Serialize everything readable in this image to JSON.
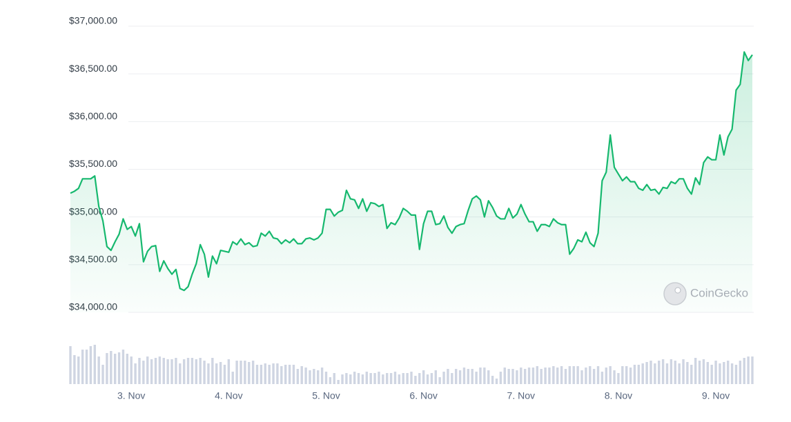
{
  "chart_data": {
    "type": "line",
    "watermark": "CoinGecko",
    "ylim": [
      34000,
      37000
    ],
    "yticks": [
      {
        "value": 34000,
        "label": "$34,000.00"
      },
      {
        "value": 34500,
        "label": "$34,500.00"
      },
      {
        "value": 35000,
        "label": "$35,000.00"
      },
      {
        "value": 35500,
        "label": "$35,500.00"
      },
      {
        "value": 36000,
        "label": "$36,000.00"
      },
      {
        "value": 36500,
        "label": "$36,500.00"
      },
      {
        "value": 37000,
        "label": "$37,000.00"
      }
    ],
    "y2lim": [
      0,
      60
    ],
    "grid": true,
    "categories": [
      null,
      null,
      null,
      null,
      null,
      null,
      null,
      null,
      null,
      null,
      null,
      null,
      null,
      null,
      null,
      "3. Nov",
      null,
      null,
      null,
      null,
      null,
      null,
      null,
      null,
      null,
      null,
      null,
      null,
      null,
      null,
      null,
      null,
      null,
      null,
      null,
      null,
      null,
      null,
      null,
      "4. Nov",
      null,
      null,
      null,
      null,
      null,
      null,
      null,
      null,
      null,
      null,
      null,
      null,
      null,
      null,
      null,
      null,
      null,
      null,
      null,
      null,
      null,
      null,
      null,
      "5. Nov",
      null,
      null,
      null,
      null,
      null,
      null,
      null,
      null,
      null,
      null,
      null,
      null,
      null,
      null,
      null,
      null,
      null,
      null,
      null,
      null,
      null,
      null,
      null,
      "6. Nov",
      null,
      null,
      null,
      null,
      null,
      null,
      null,
      null,
      null,
      null,
      null,
      null,
      null,
      null,
      null,
      null,
      null,
      null,
      null,
      null,
      null,
      null,
      null,
      "7. Nov",
      null,
      null,
      null,
      null,
      null,
      null,
      null,
      null,
      null,
      null,
      null,
      null,
      null,
      null,
      null,
      null,
      null,
      null,
      null,
      null,
      null,
      null,
      null,
      "8. Nov",
      null,
      null,
      null,
      null,
      null,
      null,
      null,
      null,
      null,
      null,
      null,
      null,
      null,
      null,
      null,
      null,
      null,
      null,
      null,
      null,
      null,
      null,
      null,
      "9. Nov",
      null,
      null,
      null,
      null,
      null,
      null,
      null,
      null,
      null
    ],
    "series": [
      {
        "type": "line",
        "color": "#16b86e",
        "values": [
          35250,
          35270,
          35300,
          35400,
          35400,
          35400,
          35430,
          35110,
          34960,
          34690,
          34650,
          34740,
          34820,
          34980,
          34870,
          34900,
          34800,
          34930,
          34530,
          34640,
          34690,
          34700,
          34430,
          34540,
          34460,
          34400,
          34450,
          34250,
          34230,
          34270,
          34400,
          34510,
          34710,
          34610,
          34370,
          34590,
          34510,
          34650,
          34640,
          34630,
          34740,
          34710,
          34770,
          34710,
          34730,
          34690,
          34700,
          34830,
          34800,
          34850,
          34780,
          34770,
          34720,
          34760,
          34730,
          34770,
          34720,
          34720,
          34770,
          34780,
          34760,
          34780,
          34830,
          35080,
          35080,
          35010,
          35050,
          35070,
          35280,
          35190,
          35180,
          35090,
          35190,
          35060,
          35150,
          35140,
          35110,
          35130,
          34880,
          34940,
          34920,
          34990,
          35090,
          35060,
          35020,
          35020,
          34660,
          34930,
          35060,
          35060,
          34920,
          34930,
          35010,
          34890,
          34830,
          34900,
          34920,
          34930,
          35070,
          35190,
          35220,
          35180,
          35000,
          35170,
          35100,
          35010,
          34980,
          34980,
          35090,
          34990,
          35030,
          35130,
          35030,
          34950,
          34950,
          34850,
          34920,
          34920,
          34900,
          34980,
          34940,
          34920,
          34920,
          34610,
          34670,
          34760,
          34740,
          34840,
          34730,
          34690,
          34830,
          35380,
          35470,
          35860,
          35520,
          35450,
          35380,
          35420,
          35370,
          35370,
          35300,
          35280,
          35340,
          35280,
          35290,
          35240,
          35310,
          35300,
          35370,
          35350,
          35400,
          35400,
          35300,
          35240,
          35410,
          35340,
          35570,
          35630,
          35600,
          35600,
          35860,
          35650,
          35840,
          35920,
          36330,
          36390,
          36730,
          36640,
          36700
        ]
      },
      {
        "type": "bar",
        "axis": "y2",
        "color": "#cfd5e2",
        "values": [
          55,
          42,
          40,
          50,
          50,
          55,
          57,
          40,
          28,
          45,
          48,
          44,
          46,
          50,
          44,
          40,
          30,
          38,
          34,
          40,
          36,
          38,
          40,
          38,
          36,
          36,
          38,
          30,
          36,
          38,
          38,
          36,
          38,
          34,
          30,
          38,
          30,
          32,
          28,
          36,
          18,
          34,
          34,
          34,
          32,
          34,
          28,
          28,
          30,
          28,
          30,
          30,
          26,
          28,
          28,
          28,
          22,
          26,
          24,
          20,
          22,
          20,
          24,
          18,
          10,
          16,
          6,
          14,
          16,
          14,
          18,
          16,
          14,
          18,
          16,
          16,
          18,
          14,
          16,
          16,
          18,
          14,
          16,
          16,
          18,
          12,
          16,
          20,
          14,
          16,
          20,
          10,
          18,
          22,
          16,
          22,
          20,
          24,
          22,
          22,
          18,
          24,
          24,
          20,
          12,
          8,
          18,
          24,
          22,
          22,
          20,
          24,
          22,
          24,
          24,
          26,
          22,
          24,
          24,
          26,
          24,
          26,
          22,
          26,
          26,
          26,
          20,
          24,
          26,
          22,
          26,
          18,
          24,
          26,
          20,
          16,
          26,
          26,
          24,
          28,
          28,
          30,
          32,
          34,
          30,
          34,
          36,
          30,
          36,
          34,
          30,
          36,
          32,
          28,
          38,
          34,
          36,
          32,
          28,
          34,
          30,
          32,
          34,
          30,
          28,
          34,
          38,
          40,
          40
        ]
      }
    ]
  }
}
